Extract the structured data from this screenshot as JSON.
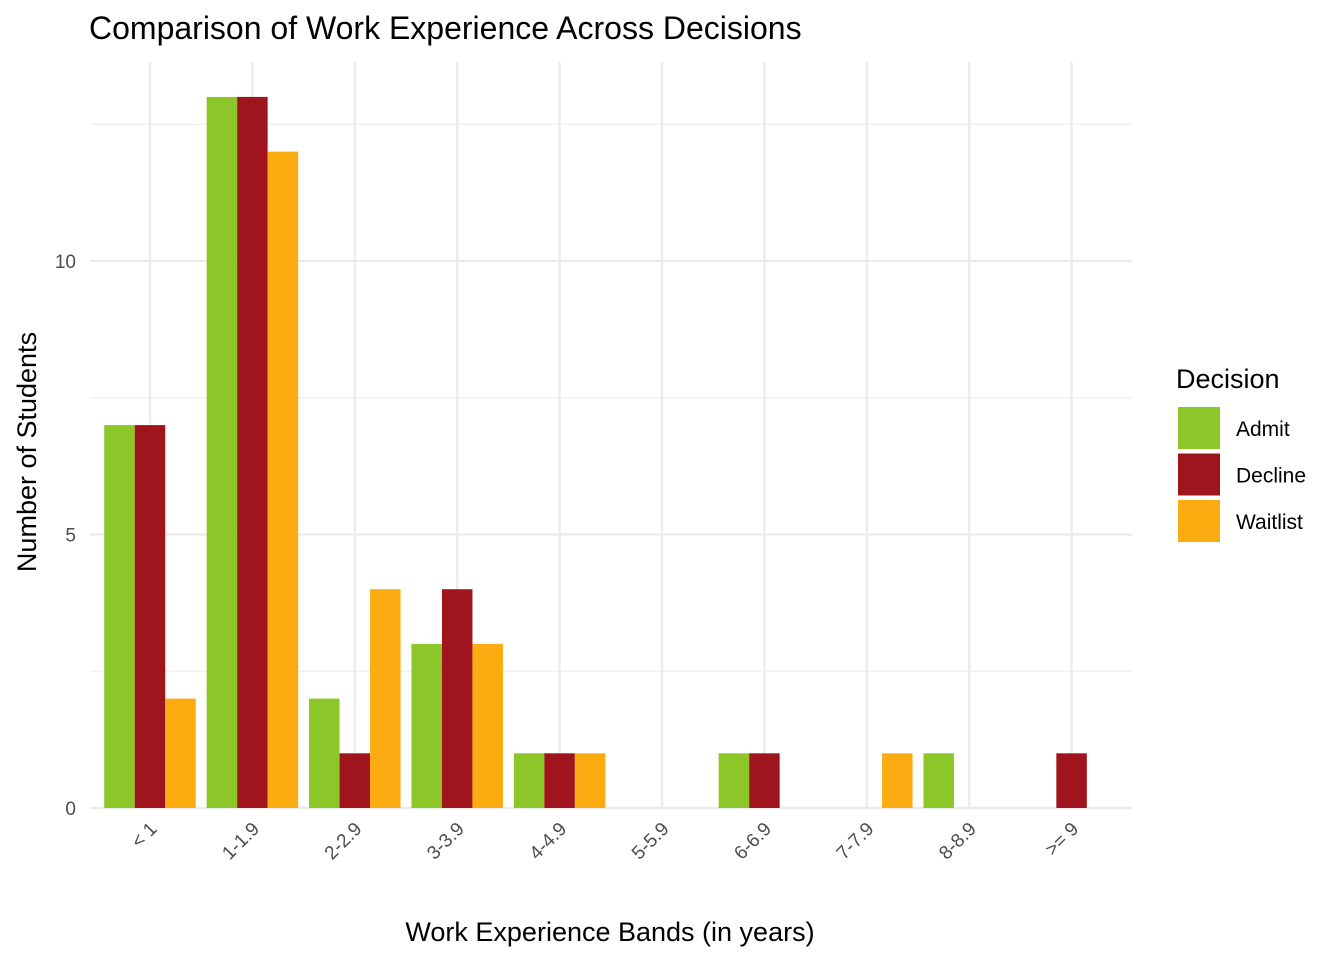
{
  "chart_data": {
    "type": "bar",
    "title": "Comparison of Work Experience Across Decisions",
    "xlabel": "Work Experience Bands (in years)",
    "ylabel": "Number of Students",
    "categories": [
      "< 1",
      "1-1.9",
      "2-2.9",
      "3-3.9",
      "4-4.9",
      "5-5.9",
      "6-6.9",
      "7-7.9",
      "8-8.9",
      ">= 9"
    ],
    "series": [
      {
        "name": "Admit",
        "color": "#8cc629",
        "values": [
          7,
          13,
          2,
          3,
          1,
          0,
          1,
          0,
          1,
          0
        ]
      },
      {
        "name": "Decline",
        "color": "#a0141e",
        "values": [
          7,
          13,
          1,
          4,
          1,
          0,
          1,
          0,
          0,
          1
        ]
      },
      {
        "name": "Waitlist",
        "color": "#fcab10",
        "values": [
          2,
          12,
          4,
          3,
          1,
          0,
          0,
          1,
          0,
          0
        ]
      }
    ],
    "ylim": [
      0,
      13.6
    ],
    "yticks": [
      0,
      5,
      10
    ],
    "grid": true,
    "legend": {
      "title": "Decision",
      "position": "right"
    }
  }
}
